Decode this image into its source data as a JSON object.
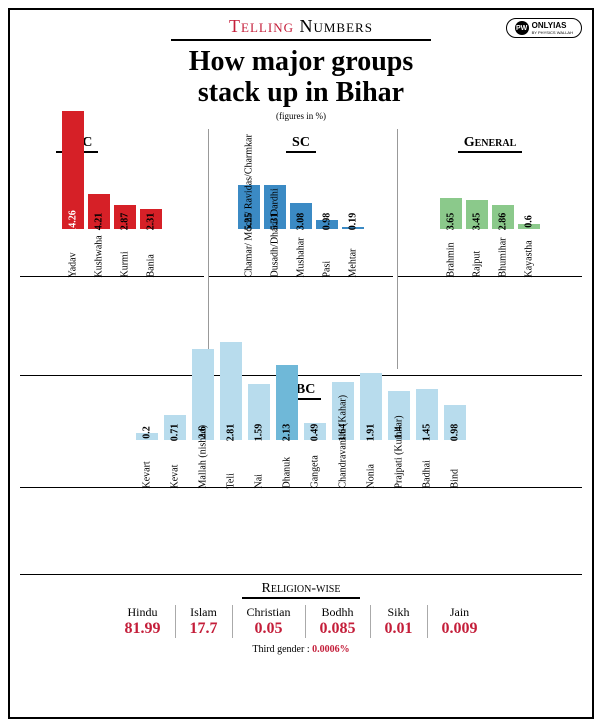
{
  "header": {
    "telling_red": "Telling",
    "telling_black": " Numbers"
  },
  "logo": {
    "brand": "ONLYIAS",
    "sub": "BY PHYSICS WALLAH",
    "icon": "PW"
  },
  "title_l1": "How major groups",
  "title_l2": "stack up in Bihar",
  "subtitle": "(figures in %)",
  "max_scale": 14.26,
  "colors": {
    "obc": "#d62027",
    "sc": "#3b8ac4",
    "general": "#8bc98b",
    "ebc": "#b8dced",
    "ebc_highlight": "#6fb8d8"
  },
  "charts": {
    "obc": {
      "title": "OBC",
      "data": [
        {
          "label": "Yadav",
          "val": 14.26,
          "valcolor": "light"
        },
        {
          "label": "Kushwaha",
          "val": 4.21,
          "valcolor": "dark"
        },
        {
          "label": "Kurmi",
          "val": 2.87,
          "valcolor": "dark"
        },
        {
          "label": "Bania",
          "val": 2.31,
          "valcolor": "dark"
        }
      ]
    },
    "sc": {
      "title": "SC",
      "data": [
        {
          "label": "Chamar/ Mochi/ Ravidas/Charmkar",
          "val": 5.25,
          "valcolor": "dark"
        },
        {
          "label": "Dusadh/Dhari/ Dardhi",
          "val": 5.31,
          "valcolor": "dark"
        },
        {
          "label": "Mushahar",
          "val": 3.08,
          "valcolor": "dark"
        },
        {
          "label": "Pasi",
          "val": 0.98,
          "valcolor": "dark"
        },
        {
          "label": "Mehtar",
          "val": 0.19,
          "valcolor": "dark"
        }
      ]
    },
    "general": {
      "title": "General",
      "data": [
        {
          "label": "Brahmin",
          "val": 3.65,
          "valcolor": "dark"
        },
        {
          "label": "Rajput",
          "val": 3.45,
          "valcolor": "dark"
        },
        {
          "label": "Bhumihar",
          "val": 2.86,
          "valcolor": "dark"
        },
        {
          "label": "Kayastha",
          "val": 0.6,
          "valcolor": "dark"
        }
      ]
    }
  },
  "ebc": {
    "title": "EBC",
    "max": 2.81,
    "data": [
      {
        "label": "Kevart",
        "val": 0.2
      },
      {
        "label": "Kevat",
        "val": 0.71
      },
      {
        "label": "Mallah (nishad)",
        "val": 2.6
      },
      {
        "label": "Teli",
        "val": 2.81
      },
      {
        "label": "Nai",
        "val": 1.59
      },
      {
        "label": "Dhanuk",
        "val": 2.13,
        "highlight": true
      },
      {
        "label": "Gangeta",
        "val": 0.49
      },
      {
        "label": "Chandravanshi (Kahar)",
        "val": 1.64
      },
      {
        "label": "Nonia",
        "val": 1.91
      },
      {
        "label": "Prajpati (Kumhar)",
        "val": 1.4
      },
      {
        "label": "Badhai",
        "val": 1.45
      },
      {
        "label": "Bind",
        "val": 0.98
      }
    ]
  },
  "religion": {
    "title": "Religion-wise",
    "items": [
      {
        "name": "Hindu",
        "val": "81.99"
      },
      {
        "name": "Islam",
        "val": "17.7"
      },
      {
        "name": "Christian",
        "val": "0.05"
      },
      {
        "name": "Bodhh",
        "val": "0.085"
      },
      {
        "name": "Sikh",
        "val": "0.01"
      },
      {
        "name": "Jain",
        "val": "0.009"
      }
    ]
  },
  "footer": {
    "label": "Third gender : ",
    "val": "0.0006%"
  }
}
